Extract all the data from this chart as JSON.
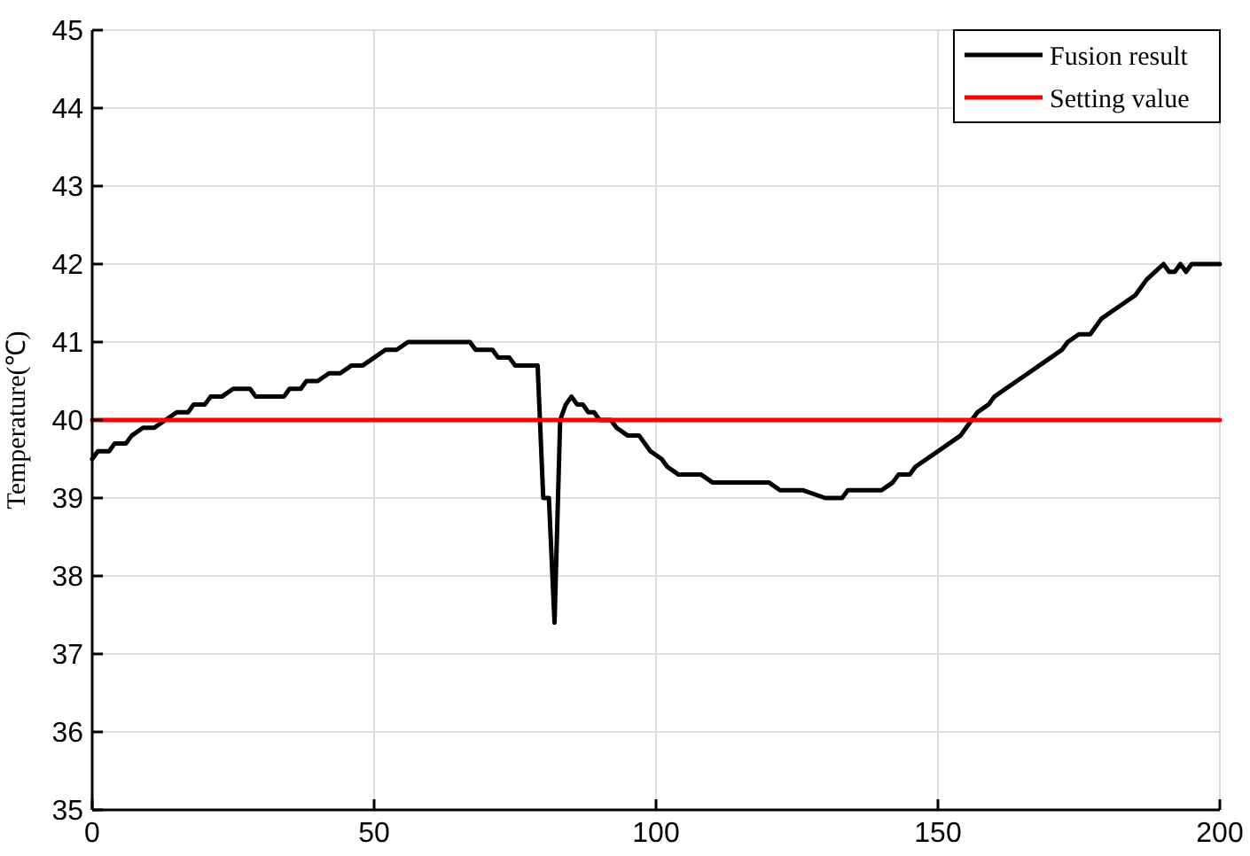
{
  "chart_data": {
    "type": "line",
    "ylabel": "Temperature(℃)",
    "xlim": [
      0,
      200
    ],
    "xticks": [
      0,
      50,
      100,
      150,
      200
    ],
    "ylim": [
      35,
      45
    ],
    "yticks": [
      35,
      36,
      37,
      38,
      39,
      40,
      41,
      42,
      43,
      44,
      45
    ],
    "grid": true,
    "legend": "top right",
    "marker": "none",
    "line_style": "solid",
    "series": [
      {
        "name": "Fusion result",
        "color": "#000000",
        "x": [
          0,
          1,
          3,
          4,
          6,
          7,
          9,
          11,
          13,
          15,
          17,
          18,
          20,
          21,
          23,
          25,
          28,
          29,
          34,
          35,
          37,
          38,
          40,
          42,
          44,
          46,
          48,
          50,
          52,
          54,
          56,
          67,
          68,
          71,
          72,
          74,
          75,
          79,
          80,
          81,
          82,
          83,
          84,
          85,
          86,
          87,
          88,
          89,
          90,
          92,
          93,
          95,
          97,
          99,
          101,
          102,
          104,
          108,
          110,
          120,
          122,
          126,
          130,
          133,
          134,
          140,
          142,
          143,
          145,
          146,
          148,
          150,
          152,
          154,
          155,
          157,
          159,
          160,
          162,
          164,
          166,
          168,
          170,
          172,
          173,
          175,
          177,
          178,
          179,
          181,
          183,
          185,
          187,
          190,
          191,
          192,
          193,
          194,
          195,
          200
        ],
        "values": [
          39.5,
          39.6,
          39.6,
          39.7,
          39.7,
          39.8,
          39.9,
          39.9,
          40.0,
          40.1,
          40.1,
          40.2,
          40.2,
          40.3,
          40.3,
          40.4,
          40.4,
          40.3,
          40.3,
          40.4,
          40.4,
          40.5,
          40.5,
          40.6,
          40.6,
          40.7,
          40.7,
          40.8,
          40.9,
          40.9,
          41.0,
          41.0,
          40.9,
          40.9,
          40.8,
          40.8,
          40.7,
          40.7,
          39.0,
          39.0,
          37.4,
          40.0,
          40.2,
          40.3,
          40.2,
          40.2,
          40.1,
          40.1,
          40.0,
          40.0,
          39.9,
          39.8,
          39.8,
          39.6,
          39.5,
          39.4,
          39.3,
          39.3,
          39.2,
          39.2,
          39.1,
          39.1,
          39.0,
          39.0,
          39.1,
          39.1,
          39.2,
          39.3,
          39.3,
          39.4,
          39.5,
          39.6,
          39.7,
          39.8,
          39.9,
          40.1,
          40.2,
          40.3,
          40.4,
          40.5,
          40.6,
          40.7,
          40.8,
          40.9,
          41.0,
          41.1,
          41.1,
          41.2,
          41.3,
          41.4,
          41.5,
          41.6,
          41.8,
          42.0,
          41.9,
          41.9,
          42.0,
          41.9,
          42.0,
          42.0
        ]
      },
      {
        "name": "Setting value",
        "color": "#ff0000",
        "x": [
          0,
          200
        ],
        "values": [
          40,
          40
        ]
      }
    ]
  }
}
